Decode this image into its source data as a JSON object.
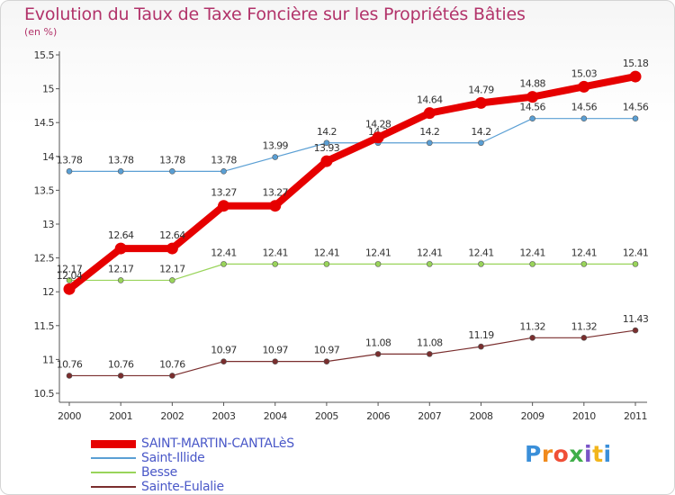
{
  "chart_data": {
    "type": "line",
    "title": "Evolution du Taux de Taxe Foncière sur les Propriétés Bâties",
    "subtitle": "(en %)",
    "xlabel": "",
    "ylabel": "",
    "x": [
      "2000",
      "2001",
      "2002",
      "2003",
      "2004",
      "2005",
      "2006",
      "2007",
      "2008",
      "2009",
      "2010",
      "2011"
    ],
    "ylim": [
      10.5,
      15.5
    ],
    "yticks": [
      "10.5",
      "11",
      "11.5",
      "12",
      "12.5",
      "13",
      "13.5",
      "14",
      "14.5",
      "15",
      "15.5"
    ],
    "grid": false,
    "legend_position": "bottom-left",
    "series": [
      {
        "name": "SAINT-MARTIN-CANTALèS",
        "color": "#e60000",
        "values": [
          12.04,
          12.64,
          12.64,
          13.27,
          13.27,
          13.93,
          14.28,
          14.64,
          14.79,
          14.88,
          15.03,
          15.18
        ],
        "labels": [
          "12.04",
          "12.64",
          "12.64",
          "13.27",
          "13.27",
          "13.93",
          "14.28",
          "14.64",
          "14.79",
          "14.88",
          "15.03",
          "15.18"
        ]
      },
      {
        "name": "Saint-Illide",
        "color": "#5a9fd4",
        "values": [
          13.78,
          13.78,
          13.78,
          13.78,
          13.99,
          14.2,
          14.2,
          14.2,
          14.2,
          14.56,
          14.56,
          14.56
        ],
        "labels": [
          "13.78",
          "13.78",
          "13.78",
          "13.78",
          "13.99",
          "14.2",
          "14.2",
          "14.2",
          "14.2",
          "14.56",
          "14.56",
          "14.56"
        ]
      },
      {
        "name": "Besse",
        "color": "#99d45a",
        "values": [
          12.17,
          12.17,
          12.17,
          12.41,
          12.41,
          12.41,
          12.41,
          12.41,
          12.41,
          12.41,
          12.41,
          12.41
        ],
        "labels": [
          "12.17",
          "12.17",
          "12.17",
          "12.41",
          "12.41",
          "12.41",
          "12.41",
          "12.41",
          "12.41",
          "12.41",
          "12.41",
          "12.41"
        ]
      },
      {
        "name": "Sainte-Eulalie",
        "color": "#7a2e2e",
        "values": [
          10.76,
          10.76,
          10.76,
          10.97,
          10.97,
          10.97,
          11.08,
          11.08,
          11.19,
          11.32,
          11.32,
          11.43
        ],
        "labels": [
          "10.76",
          "10.76",
          "10.76",
          "10.97",
          "10.97",
          "10.97",
          "11.08",
          "11.08",
          "11.19",
          "11.32",
          "11.32",
          "11.43"
        ]
      }
    ]
  },
  "logo": {
    "letters": [
      "P",
      "r",
      "o",
      "x",
      "i",
      "t",
      "i"
    ]
  }
}
